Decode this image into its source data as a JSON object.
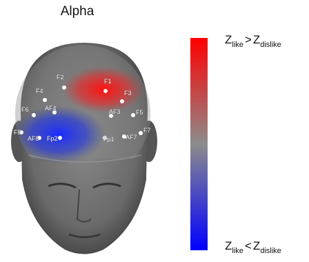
{
  "title": "Alpha",
  "colorbar": {
    "top": {
      "symbol_1": "Z",
      "sub_1": "like",
      "operator": ">",
      "symbol_2": "Z",
      "sub_2": "dislike"
    },
    "bottom": {
      "symbol_1": "Z",
      "sub_1": "like",
      "operator": "<",
      "symbol_2": "Z",
      "sub_2": "dislike"
    }
  },
  "electrodes": [
    "F1",
    "F2",
    "F3",
    "F4",
    "F5",
    "F6",
    "F7",
    "F8",
    "AF3",
    "AF4",
    "AF7",
    "AF8",
    "Fp1",
    "Fp2"
  ]
}
